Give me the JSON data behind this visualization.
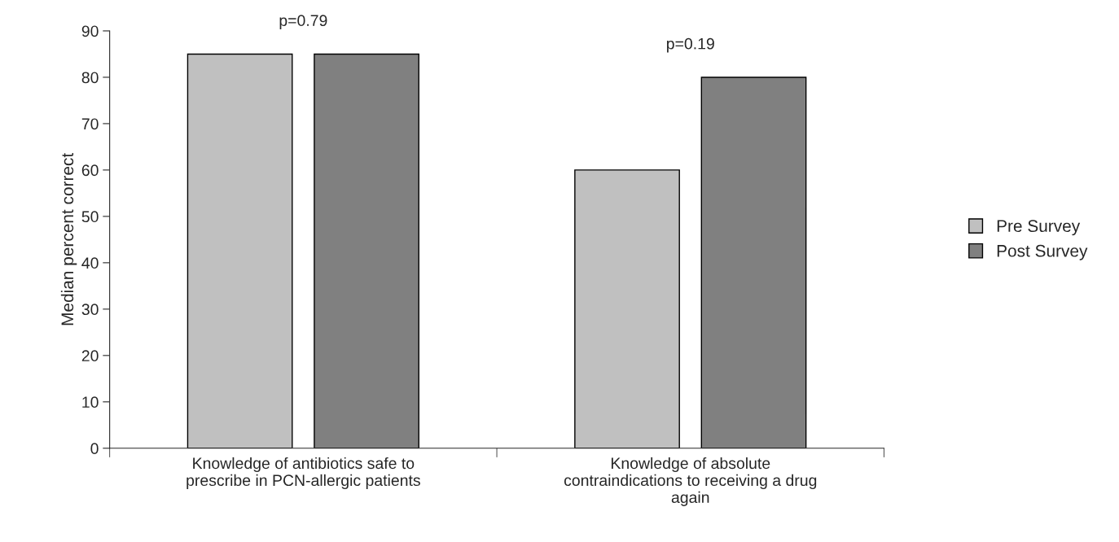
{
  "chart_data": {
    "type": "bar",
    "ylabel": "Median percent correct",
    "categories": [
      "Knowledge of antibiotics safe to\nprescribe in PCN-allergic patients",
      "Knowledge of absolute\ncontraindications to receiving a drug\nagain"
    ],
    "series": [
      {
        "name": "Pre Survey",
        "color": "#c0c0c0",
        "values": [
          85,
          60
        ]
      },
      {
        "name": "Post Survey",
        "color": "#808080",
        "values": [
          85,
          80
        ]
      }
    ],
    "ylim": [
      0,
      90
    ],
    "yticks": [
      0,
      10,
      20,
      30,
      40,
      50,
      60,
      70,
      80,
      90
    ],
    "annotations": [
      "p=0.79",
      "p=0.19"
    ],
    "grid": false,
    "legend": "right"
  }
}
